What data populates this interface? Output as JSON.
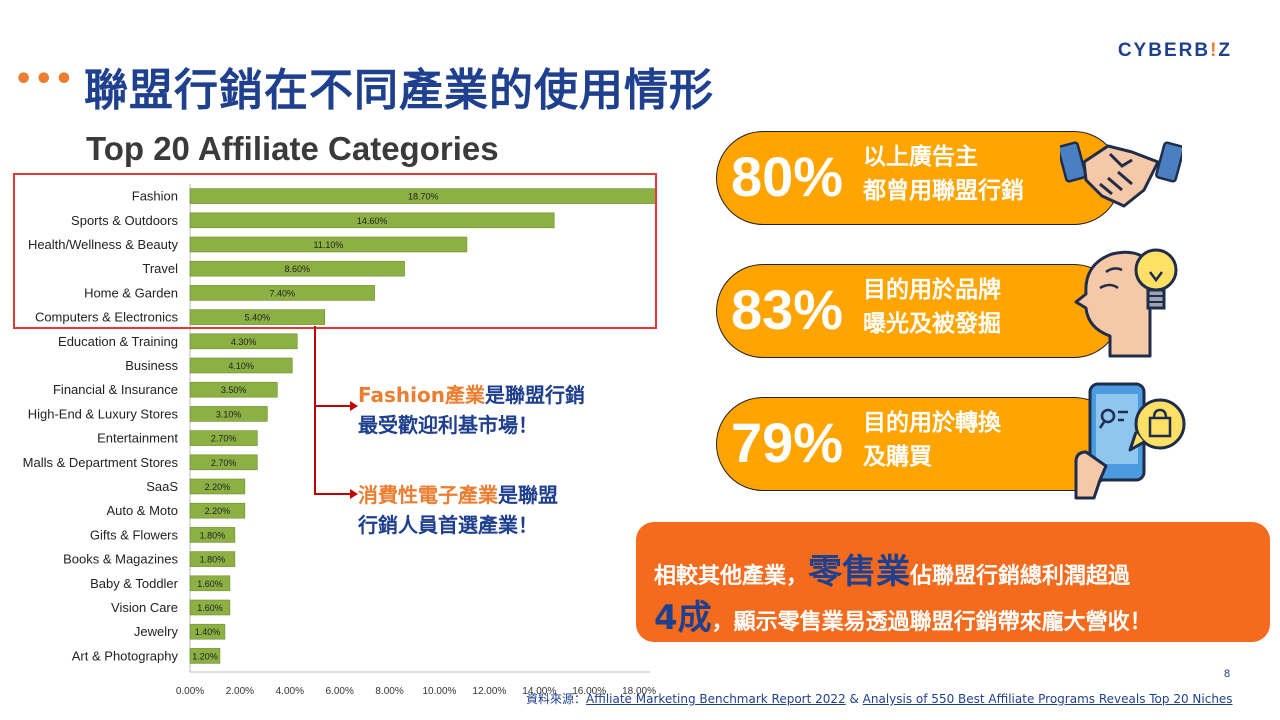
{
  "header": {
    "dots": "•••",
    "title": "聯盟行銷在不同產業的使用情形",
    "logo_left": "CYBERB",
    "logo_mid": "!",
    "logo_right": "Z"
  },
  "chart_data": {
    "type": "bar",
    "title": "Top 20 Affiliate Categories",
    "orientation": "horizontal",
    "bar_color": "#8CB043",
    "categories": [
      "Fashion",
      "Sports & Outdoors",
      "Health/Wellness & Beauty",
      "Travel",
      "Home & Garden",
      "Computers & Electronics",
      "Education & Training",
      "Business",
      "Financial & Insurance",
      "High-End & Luxury Stores",
      "Entertainment",
      "Malls & Department Stores",
      "SaaS",
      "Auto & Moto",
      "Gifts & Flowers",
      "Books & Magazines",
      "Baby & Toddler",
      "Vision Care",
      "Jewelry",
      "Art & Photography"
    ],
    "values": [
      18.7,
      14.6,
      11.1,
      8.6,
      7.4,
      5.4,
      4.3,
      4.1,
      3.5,
      3.1,
      2.7,
      2.7,
      2.2,
      2.2,
      1.8,
      1.8,
      1.6,
      1.6,
      1.4,
      1.2
    ],
    "value_labels": [
      "18.70%",
      "14.60%",
      "11.10%",
      "8.60%",
      "7.40%",
      "5.40%",
      "4.30%",
      "4.10%",
      "3.50%",
      "3.10%",
      "2.70%",
      "2.70%",
      "2.20%",
      "2.20%",
      "1.80%",
      "1.80%",
      "1.60%",
      "1.60%",
      "1.40%",
      "1.20%"
    ],
    "xlim": [
      0,
      19
    ],
    "xticks": [
      0,
      2,
      4,
      6,
      8,
      10,
      12,
      14,
      16,
      18
    ],
    "xtick_labels": [
      "0.00%",
      "2.00%",
      "4.00%",
      "6.00%",
      "8.00%",
      "10.00%",
      "12.00%",
      "14.00%",
      "16.00%",
      "18.00%"
    ]
  },
  "notes": [
    {
      "highlight": "Fashion產業",
      "rest1": "是聯盟行銷",
      "line2": "最受歡迎利基市場！"
    },
    {
      "highlight": "消費性電子產業",
      "rest1": "是聯盟",
      "line2": "行銷人員首選產業！"
    }
  ],
  "stats": [
    {
      "percent": "80%",
      "line1": "以上廣告主",
      "line2": "都曾用聯盟行銷",
      "icon": "handshake-icon"
    },
    {
      "percent": "83%",
      "line1": "目的用於品牌",
      "line2": "曝光及被發掘",
      "icon": "head-lightbulb-icon"
    },
    {
      "percent": "79%",
      "line1": "目的用於轉換",
      "line2": "及購買",
      "icon": "phone-shopping-icon"
    }
  ],
  "summary": {
    "l1_pre": "相較其他產業，",
    "l1_big": "零售業",
    "l1_post": "佔聯盟行銷總利潤超過",
    "l2_big": "4成",
    "l2_post": "，顯示零售業易透過聯盟行銷帶來龐大營收！"
  },
  "colors": {
    "accent": "#ED7D31",
    "brand": "#1F3F8F",
    "pill": "#FFA400",
    "summary_bg": "#F46B1E",
    "highlight_box": "#E53935"
  },
  "footer": {
    "page_number": "8",
    "source_prefix": "資料來源：",
    "link1": "Affiliate  Marketing Benchmark Report 2022",
    "joiner": " & ",
    "link2": "Analysis of 550 Best Affiliate Programs Reveals  Top 20 Niches"
  }
}
